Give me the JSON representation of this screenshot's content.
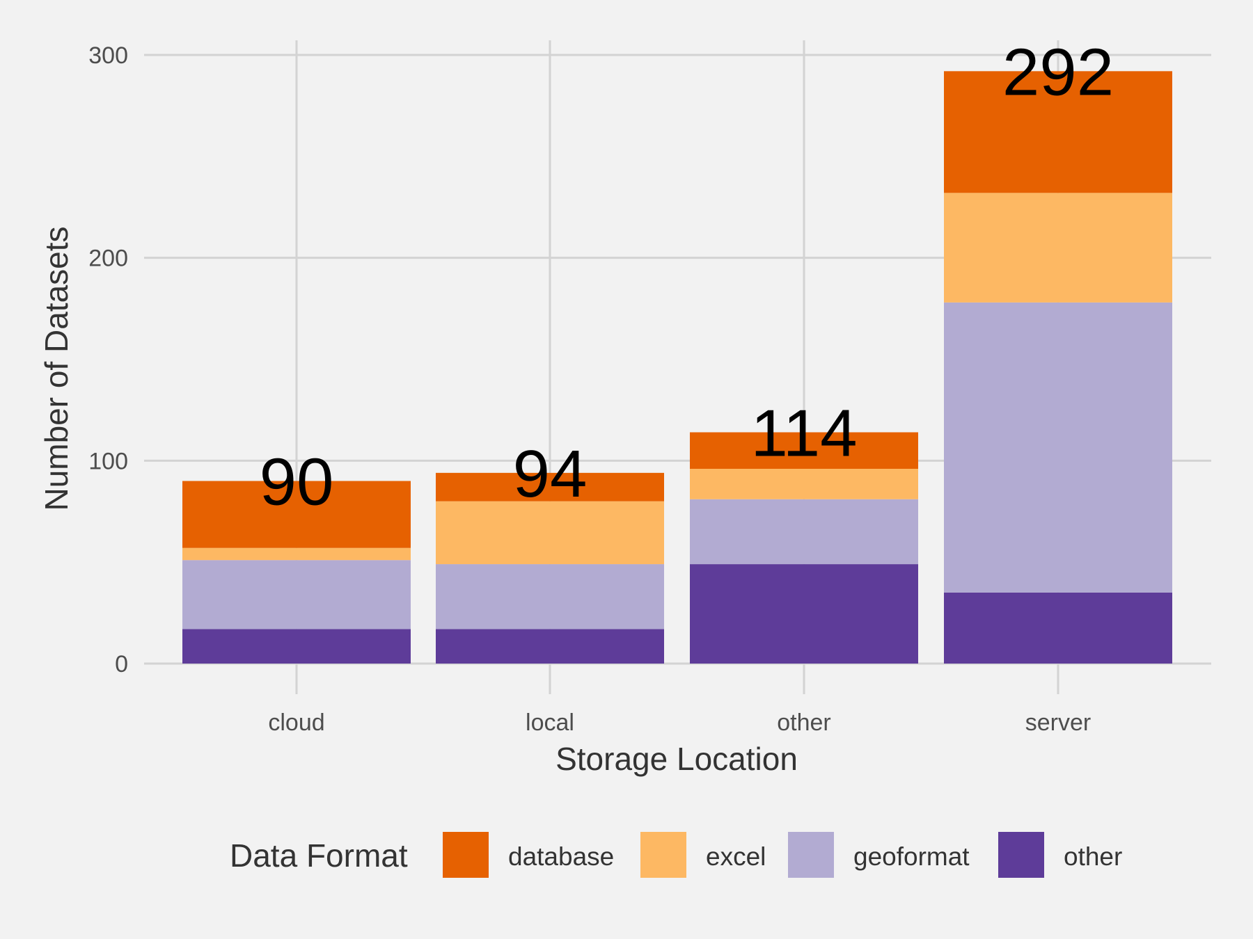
{
  "chart_data": {
    "type": "bar",
    "stacked": true,
    "categories": [
      "cloud",
      "local",
      "other",
      "server"
    ],
    "series": [
      {
        "name": "other",
        "color": "#5e3c99",
        "values": [
          17,
          17,
          49,
          35
        ]
      },
      {
        "name": "geoformat",
        "color": "#b2abd2",
        "values": [
          34,
          32,
          32,
          143
        ]
      },
      {
        "name": "excel",
        "color": "#fdb863",
        "values": [
          6,
          31,
          15,
          54
        ]
      },
      {
        "name": "database",
        "color": "#e66101",
        "values": [
          33,
          14,
          18,
          60
        ]
      }
    ],
    "totals": [
      "90",
      "94",
      "114",
      "292"
    ],
    "xlabel": "Storage Location",
    "ylabel": "Number of Datasets",
    "ylim": [
      0,
      300
    ],
    "yticks": [
      "0",
      "100",
      "200",
      "300"
    ],
    "grid": true,
    "legend": {
      "title": "Data Format",
      "placement": "bottom",
      "items": [
        {
          "label": "database",
          "color": "#e66101"
        },
        {
          "label": "excel",
          "color": "#fdb863"
        },
        {
          "label": "geoformat",
          "color": "#b2abd2"
        },
        {
          "label": "other",
          "color": "#5e3c99"
        }
      ]
    }
  }
}
